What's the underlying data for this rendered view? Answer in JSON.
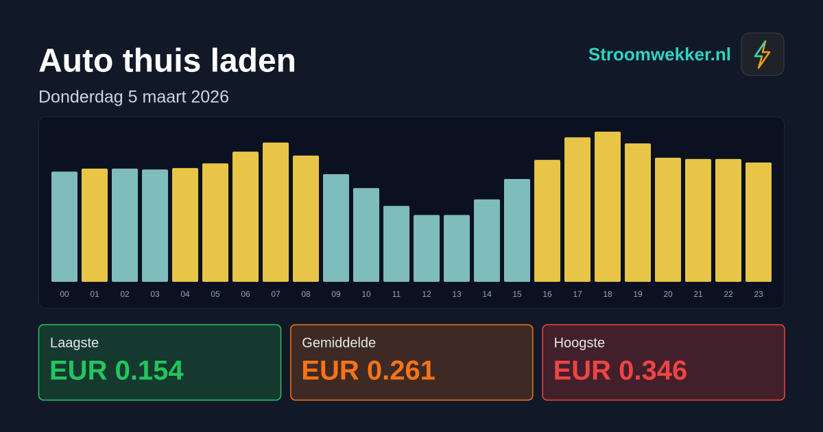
{
  "header": {
    "title": "Auto thuis laden",
    "subtitle": "Donderdag 5 maart 2026",
    "brand": "Stroomwekker.nl"
  },
  "chart_data": {
    "type": "bar",
    "categories": [
      "00",
      "01",
      "02",
      "03",
      "04",
      "05",
      "06",
      "07",
      "08",
      "09",
      "10",
      "11",
      "12",
      "13",
      "14",
      "15",
      "16",
      "17",
      "18",
      "19",
      "20",
      "21",
      "22",
      "23"
    ],
    "values": [
      0.254,
      0.261,
      0.261,
      0.259,
      0.262,
      0.273,
      0.3,
      0.321,
      0.291,
      0.248,
      0.216,
      0.175,
      0.154,
      0.154,
      0.19,
      0.237,
      0.281,
      0.333,
      0.346,
      0.319,
      0.286,
      0.283,
      0.283,
      0.275
    ],
    "colors": [
      "#7fbcbc",
      "#e8c547",
      "#7fbcbc",
      "#7fbcbc",
      "#e8c547",
      "#e8c547",
      "#e8c547",
      "#e8c547",
      "#e8c547",
      "#7fbcbc",
      "#7fbcbc",
      "#7fbcbc",
      "#7fbcbc",
      "#7fbcbc",
      "#7fbcbc",
      "#7fbcbc",
      "#e8c547",
      "#e8c547",
      "#e8c547",
      "#e8c547",
      "#e8c547",
      "#e8c547",
      "#e8c547",
      "#e8c547"
    ],
    "ylim": [
      0,
      0.365
    ]
  },
  "stats": [
    {
      "label": "Laagste",
      "value": "EUR 0.154"
    },
    {
      "label": "Gemiddelde",
      "value": "EUR 0.261"
    },
    {
      "label": "Hoogste",
      "value": "EUR 0.346"
    }
  ]
}
